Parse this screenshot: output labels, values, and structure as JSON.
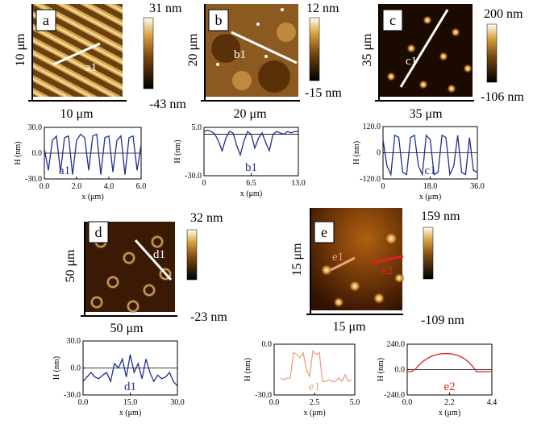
{
  "panels": [
    {
      "letter": "a",
      "x_size": "10 μm",
      "y_size": "10 μm",
      "scale_max": "31 nm",
      "scale_min": "-43 nm"
    },
    {
      "letter": "b",
      "x_size": "20 μm",
      "y_size": "20 μm",
      "scale_max": "12 nm",
      "scale_min": "-15 nm"
    },
    {
      "letter": "c",
      "x_size": "35 μm",
      "y_size": "35 μm",
      "scale_max": "200 nm",
      "scale_min": "-106 nm"
    },
    {
      "letter": "d",
      "x_size": "50 μm",
      "y_size": "50 μm",
      "scale_max": "32 nm",
      "scale_min": "-23 nm"
    },
    {
      "letter": "e",
      "x_size": "15 μm",
      "y_size": "15 μm",
      "scale_max": "159 nm",
      "scale_min": "-109 nm"
    }
  ],
  "chart_data": [
    {
      "type": "line",
      "annotation": "a1",
      "xlabel": "x (μm)",
      "ylabel": "H (nm)",
      "color": "#1f2f8f",
      "x": [
        0,
        0.25,
        0.5,
        0.75,
        1,
        1.25,
        1.5,
        1.75,
        2,
        2.25,
        2.5,
        2.75,
        3,
        3.25,
        3.5,
        3.75,
        4,
        4.25,
        4.5,
        4.75,
        5,
        5.25,
        5.5,
        5.75,
        6
      ],
      "values": [
        5,
        -20,
        15,
        20,
        -22,
        18,
        20,
        -25,
        15,
        22,
        18,
        -20,
        20,
        22,
        -25,
        18,
        20,
        -22,
        15,
        20,
        -25,
        18,
        20,
        -20,
        10
      ],
      "xlim": [
        0,
        6
      ],
      "ylim": [
        -30,
        30
      ],
      "xticks": [
        {
          "value": 0,
          "label": "0.0"
        },
        {
          "value": 2,
          "label": "2.0"
        },
        {
          "value": 4,
          "label": "4.0"
        },
        {
          "value": 6,
          "label": "6.0"
        }
      ],
      "yticks": [
        {
          "value": 30,
          "label": "30.0"
        },
        {
          "value": 0,
          "label": "0.0"
        },
        {
          "value": -30,
          "label": "-30.0"
        }
      ]
    },
    {
      "type": "line",
      "annotation": "b1",
      "xlabel": "x (μm)",
      "ylabel": "H (nm)",
      "color": "#1f2f8f",
      "x": [
        0,
        0.5,
        1,
        1.5,
        2,
        2.5,
        3,
        3.5,
        4,
        4.5,
        5,
        5.5,
        6,
        6.5,
        7,
        7.5,
        8,
        8.5,
        9,
        9.5,
        10,
        10.5,
        11,
        11.5,
        12,
        12.5,
        13
      ],
      "values": [
        2,
        3,
        2,
        0,
        -5,
        -12,
        -3,
        2,
        1,
        -8,
        -15,
        -5,
        2,
        0,
        -10,
        -3,
        1,
        -6,
        -12,
        0,
        2,
        1,
        0,
        2,
        1,
        2,
        2
      ],
      "xlim": [
        0,
        13
      ],
      "ylim": [
        -30,
        5
      ],
      "xticks": [
        0,
        {
          "value": 6.5,
          "label": "6.5"
        },
        {
          "value": 13,
          "label": "13.0"
        }
      ],
      "yticks": [
        {
          "value": 5,
          "label": "5.0"
        },
        {
          "value": -30,
          "label": "-30.0"
        }
      ]
    },
    {
      "type": "line",
      "annotation": "c1",
      "xlabel": "x (μm)",
      "ylabel": "H (nm)",
      "color": "#1f2f8f",
      "x": [
        0,
        1.5,
        3,
        4.5,
        6,
        7.5,
        9,
        10.5,
        12,
        13.5,
        15,
        16.5,
        18,
        19.5,
        21,
        22.5,
        24,
        25.5,
        27,
        28.5,
        30,
        31.5,
        33,
        34.5,
        36
      ],
      "values": [
        60,
        -60,
        -100,
        80,
        70,
        -90,
        -100,
        70,
        80,
        -60,
        -100,
        80,
        60,
        -100,
        -90,
        80,
        70,
        -100,
        -60,
        80,
        -90,
        -100,
        70,
        -80,
        -90
      ],
      "xlim": [
        0,
        36
      ],
      "ylim": [
        -120,
        120
      ],
      "xticks": [
        0,
        {
          "value": 18,
          "label": "18.0"
        },
        {
          "value": 36,
          "label": "36.0"
        }
      ],
      "yticks": [
        {
          "value": 120,
          "label": "120.0"
        },
        0,
        {
          "value": -120,
          "label": "-120.0"
        }
      ]
    },
    {
      "type": "line",
      "annotation": "d1",
      "xlabel": "x (μm)",
      "ylabel": "H (nm)",
      "color": "#1f2f8f",
      "x": [
        0,
        1.25,
        2.5,
        3.75,
        5,
        6.25,
        7.5,
        8.75,
        10,
        11.25,
        12.5,
        13.75,
        15,
        16.25,
        17.5,
        18.75,
        20,
        21.25,
        22.5,
        23.75,
        25,
        26.25,
        27.5,
        28.75,
        30
      ],
      "values": [
        -15,
        -10,
        -5,
        -10,
        -12,
        -8,
        -5,
        -15,
        5,
        0,
        10,
        -10,
        15,
        -5,
        5,
        -12,
        10,
        -5,
        -15,
        -8,
        -12,
        -10,
        -5,
        -15,
        -20
      ],
      "xlim": [
        0,
        30
      ],
      "ylim": [
        -30,
        30
      ],
      "xticks": [
        {
          "value": 0,
          "label": "0.0"
        },
        {
          "value": 15,
          "label": "15.0"
        },
        {
          "value": 30,
          "label": "30.0"
        }
      ],
      "yticks": [
        {
          "value": 30,
          "label": "30.0"
        },
        {
          "value": 0,
          "label": "0.0"
        },
        {
          "value": -30,
          "label": "-30.0"
        }
      ]
    },
    {
      "type": "line",
      "annotation": "e1",
      "xlabel": "x (μm)",
      "ylabel": "H (nm)",
      "color": "#f0a080",
      "x": [
        0.4,
        0.6,
        0.8,
        1,
        1.2,
        1.4,
        1.6,
        1.8,
        2,
        2.2,
        2.4,
        2.6,
        2.8,
        3,
        3.2,
        3.4,
        3.6,
        3.8,
        4,
        4.2,
        4.4,
        4.6,
        4.8
      ],
      "values": [
        -20,
        -21,
        -20,
        -20,
        -5,
        -6,
        -8,
        -5,
        -15,
        -19,
        -4,
        -6,
        -5,
        -22,
        -22,
        -21,
        -22,
        -22,
        -20,
        -22,
        -18,
        -22,
        -21
      ],
      "xlim": [
        0,
        5
      ],
      "ylim": [
        -30,
        0
      ],
      "xticks": [
        {
          "value": 0,
          "label": "0.0"
        },
        {
          "value": 2.5,
          "label": "2.5"
        },
        {
          "value": 5,
          "label": "5.0"
        }
      ],
      "yticks": [
        {
          "value": 0,
          "label": "0.0"
        },
        {
          "value": -30,
          "label": "-30.0"
        }
      ]
    },
    {
      "type": "line",
      "annotation": "e2",
      "xlabel": "x (μm)",
      "ylabel": "H (nm)",
      "color": "#e02020",
      "x": [
        0,
        0.2,
        0.4,
        0.6,
        0.8,
        1,
        1.2,
        1.4,
        1.6,
        1.8,
        2,
        2.2,
        2.4,
        2.6,
        2.8,
        3,
        3.2,
        3.4,
        3.6,
        3.8,
        4,
        4.2,
        4.4
      ],
      "values": [
        -20,
        -20,
        0,
        40,
        75,
        100,
        120,
        135,
        145,
        150,
        152,
        150,
        145,
        135,
        120,
        100,
        70,
        30,
        -20,
        -20,
        -20,
        -20,
        -20
      ],
      "xlim": [
        0,
        4.4
      ],
      "ylim": [
        -240,
        240
      ],
      "xticks": [
        {
          "value": 0,
          "label": "0.0"
        },
        {
          "value": 2.2,
          "label": "2.2"
        },
        {
          "value": 4.4,
          "label": "4.4"
        }
      ],
      "yticks": [
        {
          "value": 240,
          "label": "240.0"
        },
        {
          "value": 0,
          "label": "0.0"
        },
        {
          "value": -240,
          "label": "-240.0"
        }
      ]
    }
  ]
}
